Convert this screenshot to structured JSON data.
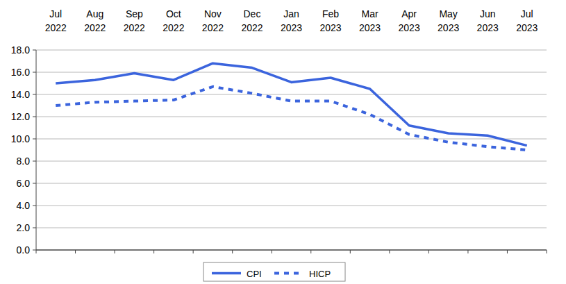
{
  "chart_data": {
    "type": "line",
    "categories": [
      "Jul 2022",
      "Aug 2022",
      "Sep 2022",
      "Oct 2022",
      "Nov 2022",
      "Dec 2022",
      "Jan 2023",
      "Feb 2023",
      "Mar 2023",
      "Apr 2023",
      "May 2023",
      "Jun 2023",
      "Jul 2023"
    ],
    "series": [
      {
        "name": "CPI",
        "color": "#3b64dd",
        "line_style": "solid",
        "values": [
          15.0,
          15.3,
          15.9,
          15.3,
          16.8,
          16.4,
          15.1,
          15.5,
          14.5,
          11.2,
          10.5,
          10.3,
          9.4
        ]
      },
      {
        "name": "HICP",
        "color": "#3b64dd",
        "line_style": "dotted",
        "values": [
          13.0,
          13.3,
          13.4,
          13.5,
          14.7,
          14.1,
          13.4,
          13.4,
          12.2,
          10.4,
          9.7,
          9.3,
          9.0
        ]
      }
    ],
    "ylim": [
      0,
      18
    ],
    "yticks": [
      {
        "value": 0,
        "label": "0.0"
      },
      {
        "value": 2,
        "label": "2.0"
      },
      {
        "value": 4,
        "label": "4.0"
      },
      {
        "value": 6,
        "label": "6.0"
      },
      {
        "value": 8,
        "label": "8.0"
      },
      {
        "value": 10,
        "label": "10.0"
      },
      {
        "value": 12,
        "label": "12.0"
      },
      {
        "value": 14,
        "label": "14.0"
      },
      {
        "value": 16,
        "label": "16.0"
      },
      {
        "value": 18,
        "label": "18.0"
      }
    ],
    "grid": true,
    "legend": "bottom"
  }
}
